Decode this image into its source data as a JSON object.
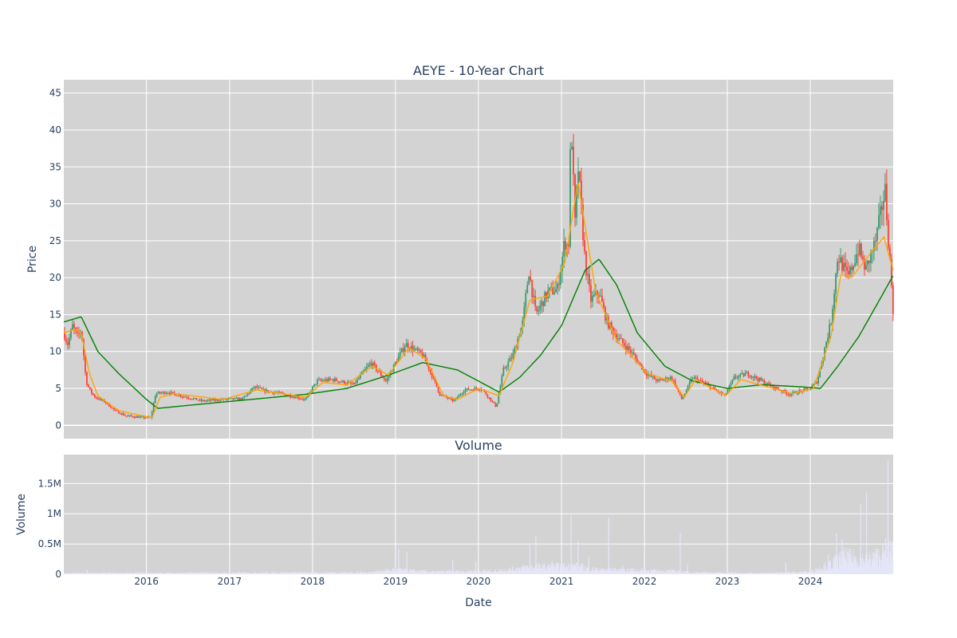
{
  "chart_data": [
    {
      "type": "candlestick",
      "title": "AEYE - 10-Year Chart",
      "ylabel": "Price",
      "ylim": [
        -1.8,
        46.8
      ],
      "yticks": [
        0,
        5,
        10,
        15,
        20,
        25,
        30,
        35,
        40,
        45
      ],
      "xlim": [
        "2015-01-02",
        "2024-12-31"
      ],
      "xticks": [
        "2016-01-01",
        "2017-01-01",
        "2018-01-01",
        "2019-01-01",
        "2020-01-01",
        "2021-01-01",
        "2022-01-01",
        "2023-01-01",
        "2024-01-01"
      ],
      "xtick_labels": [
        "2016",
        "2017",
        "2018",
        "2019",
        "2020",
        "2021",
        "2022",
        "2023",
        "2024"
      ],
      "grid": true,
      "colors": {
        "up": "#3d9970",
        "down": "#ff4136",
        "ma_short": "#ffa500",
        "ma_long": "#008000",
        "plot_bg": "#d3d3d3"
      },
      "price_anchors": [
        [
          "2015-01-02",
          12.5
        ],
        [
          "2015-01-20",
          11.0
        ],
        [
          "2015-02-10",
          13.5
        ],
        [
          "2015-03-01",
          12.0
        ],
        [
          "2015-03-20",
          13.0
        ],
        [
          "2015-04-10",
          6.0
        ],
        [
          "2015-04-25",
          4.8
        ],
        [
          "2015-05-20",
          3.8
        ],
        [
          "2015-07-01",
          3.2
        ],
        [
          "2015-08-15",
          2.0
        ],
        [
          "2015-10-01",
          1.3
        ],
        [
          "2015-12-01",
          1.1
        ],
        [
          "2016-01-20",
          1.0
        ],
        [
          "2016-02-10",
          4.3
        ],
        [
          "2016-04-01",
          4.5
        ],
        [
          "2016-06-01",
          4.0
        ],
        [
          "2016-09-01",
          3.3
        ],
        [
          "2016-12-01",
          3.5
        ],
        [
          "2017-03-01",
          3.6
        ],
        [
          "2017-04-20",
          5.2
        ],
        [
          "2017-06-01",
          4.7
        ],
        [
          "2017-09-01",
          4.2
        ],
        [
          "2017-12-01",
          3.5
        ],
        [
          "2018-01-20",
          6.0
        ],
        [
          "2018-04-01",
          6.2
        ],
        [
          "2018-07-01",
          5.5
        ],
        [
          "2018-09-15",
          8.5
        ],
        [
          "2018-11-20",
          6.0
        ],
        [
          "2019-01-10",
          9.0
        ],
        [
          "2019-02-15",
          11.0
        ],
        [
          "2019-05-01",
          9.5
        ],
        [
          "2019-06-01",
          7.5
        ],
        [
          "2019-07-15",
          4.2
        ],
        [
          "2019-09-15",
          3.3
        ],
        [
          "2019-11-01",
          4.8
        ],
        [
          "2020-01-15",
          5.0
        ],
        [
          "2020-03-20",
          2.5
        ],
        [
          "2020-04-20",
          7.5
        ],
        [
          "2020-06-01",
          9.5
        ],
        [
          "2020-07-15",
          14.0
        ],
        [
          "2020-08-10",
          21.0
        ],
        [
          "2020-09-10",
          15.0
        ],
        [
          "2020-11-01",
          18.0
        ],
        [
          "2020-12-15",
          18.5
        ],
        [
          "2021-01-15",
          25.0
        ],
        [
          "2021-02-01",
          24.0
        ],
        [
          "2021-02-12",
          42.0
        ],
        [
          "2021-03-01",
          27.0
        ],
        [
          "2021-03-15",
          35.0
        ],
        [
          "2021-04-15",
          22.0
        ],
        [
          "2021-05-10",
          17.0
        ],
        [
          "2021-06-15",
          18.0
        ],
        [
          "2021-07-20",
          14.0
        ],
        [
          "2021-09-01",
          12.0
        ],
        [
          "2021-11-01",
          10.0
        ],
        [
          "2022-01-10",
          7.0
        ],
        [
          "2022-03-01",
          6.0
        ],
        [
          "2022-05-01",
          6.5
        ],
        [
          "2022-06-15",
          3.5
        ],
        [
          "2022-08-01",
          6.5
        ],
        [
          "2022-10-01",
          5.5
        ],
        [
          "2022-12-20",
          4.0
        ],
        [
          "2023-02-01",
          6.5
        ],
        [
          "2023-04-01",
          7.0
        ],
        [
          "2023-07-01",
          5.5
        ],
        [
          "2023-10-01",
          4.2
        ],
        [
          "2024-01-01",
          5.0
        ],
        [
          "2024-02-01",
          6.0
        ],
        [
          "2024-03-01",
          10.0
        ],
        [
          "2024-04-01",
          14.0
        ],
        [
          "2024-05-01",
          23.0
        ],
        [
          "2024-06-15",
          20.0
        ],
        [
          "2024-08-01",
          24.0
        ],
        [
          "2024-09-01",
          21.0
        ],
        [
          "2024-10-15",
          25.0
        ],
        [
          "2024-11-25",
          32.0
        ],
        [
          "2024-12-10",
          25.0
        ],
        [
          "2024-12-31",
          15.5
        ]
      ],
      "short_ma_anchors": [
        [
          "2015-01-02",
          12.5
        ],
        [
          "2015-02-20",
          13.0
        ],
        [
          "2015-03-20",
          12.5
        ],
        [
          "2015-04-25",
          7.0
        ],
        [
          "2015-06-01",
          4.0
        ],
        [
          "2015-09-01",
          2.0
        ],
        [
          "2016-01-25",
          1.0
        ],
        [
          "2016-03-01",
          3.8
        ],
        [
          "2016-05-01",
          4.3
        ],
        [
          "2016-12-01",
          3.5
        ],
        [
          "2017-05-01",
          4.8
        ],
        [
          "2017-12-01",
          3.8
        ],
        [
          "2018-02-15",
          5.8
        ],
        [
          "2018-06-01",
          5.5
        ],
        [
          "2018-09-20",
          8.0
        ],
        [
          "2018-12-01",
          6.8
        ],
        [
          "2019-03-01",
          10.5
        ],
        [
          "2019-05-15",
          9.0
        ],
        [
          "2019-08-01",
          4.0
        ],
        [
          "2019-10-01",
          3.5
        ],
        [
          "2020-01-01",
          5.0
        ],
        [
          "2020-04-01",
          4.0
        ],
        [
          "2020-06-01",
          8.5
        ],
        [
          "2020-08-15",
          17.0
        ],
        [
          "2020-11-01",
          17.5
        ],
        [
          "2021-01-15",
          22.0
        ],
        [
          "2021-03-15",
          33.0
        ],
        [
          "2021-04-20",
          26.0
        ],
        [
          "2021-06-01",
          18.0
        ],
        [
          "2021-09-01",
          11.5
        ],
        [
          "2022-01-15",
          7.0
        ],
        [
          "2022-05-01",
          6.0
        ],
        [
          "2022-06-25",
          3.8
        ],
        [
          "2022-08-15",
          6.2
        ],
        [
          "2022-12-25",
          4.0
        ],
        [
          "2023-03-01",
          6.2
        ],
        [
          "2023-10-15",
          4.3
        ],
        [
          "2024-01-15",
          5.0
        ],
        [
          "2024-04-01",
          12.0
        ],
        [
          "2024-05-15",
          20.5
        ],
        [
          "2024-07-01",
          20.0
        ],
        [
          "2024-09-01",
          22.5
        ],
        [
          "2024-11-20",
          25.5
        ],
        [
          "2024-12-31",
          21.0
        ]
      ],
      "long_ma_anchors": [
        [
          "2015-01-02",
          14.0
        ],
        [
          "2015-03-20",
          14.7
        ],
        [
          "2015-06-01",
          10.0
        ],
        [
          "2015-09-01",
          7.0
        ],
        [
          "2016-01-01",
          3.5
        ],
        [
          "2016-02-20",
          2.3
        ],
        [
          "2016-07-01",
          2.7
        ],
        [
          "2017-04-01",
          3.5
        ],
        [
          "2017-12-01",
          4.2
        ],
        [
          "2018-06-01",
          5.0
        ],
        [
          "2018-12-01",
          6.8
        ],
        [
          "2019-05-01",
          8.5
        ],
        [
          "2019-10-01",
          7.5
        ],
        [
          "2020-01-01",
          6.0
        ],
        [
          "2020-04-01",
          4.5
        ],
        [
          "2020-07-01",
          6.5
        ],
        [
          "2020-10-01",
          9.5
        ],
        [
          "2021-01-01",
          13.5
        ],
        [
          "2021-04-15",
          21.0
        ],
        [
          "2021-06-15",
          22.5
        ],
        [
          "2021-09-01",
          19.0
        ],
        [
          "2021-12-01",
          12.5
        ],
        [
          "2022-04-01",
          8.0
        ],
        [
          "2022-08-01",
          6.0
        ],
        [
          "2023-01-01",
          5.0
        ],
        [
          "2023-06-01",
          5.5
        ],
        [
          "2023-12-01",
          5.2
        ],
        [
          "2024-02-15",
          5.0
        ],
        [
          "2024-05-01",
          8.0
        ],
        [
          "2024-08-01",
          12.0
        ],
        [
          "2024-11-01",
          17.0
        ],
        [
          "2024-12-31",
          20.3
        ]
      ]
    },
    {
      "type": "bar",
      "title": "Volume",
      "xlabel": "Date",
      "ylabel": "Volume",
      "ylim": [
        0,
        1.98
      ],
      "yticks": [
        0,
        0.5,
        1,
        1.5
      ],
      "ytick_labels": [
        "0",
        "0.5M",
        "1M",
        "1.5M"
      ],
      "unit": "millions of shares",
      "colors": {
        "bar": "#e6e6fa",
        "plot_bg": "#d3d3d3"
      },
      "base_volume_anchors": [
        [
          "2015-01-02",
          0.02
        ],
        [
          "2018-09-01",
          0.03
        ],
        [
          "2019-01-01",
          0.08
        ],
        [
          "2019-06-01",
          0.04
        ],
        [
          "2020-04-01",
          0.06
        ],
        [
          "2020-08-01",
          0.12
        ],
        [
          "2021-03-01",
          0.14
        ],
        [
          "2021-06-01",
          0.08
        ],
        [
          "2021-12-01",
          0.07
        ],
        [
          "2022-06-01",
          0.05
        ],
        [
          "2022-08-01",
          0.03
        ],
        [
          "2023-06-01",
          0.02
        ],
        [
          "2024-01-01",
          0.04
        ],
        [
          "2024-03-15",
          0.15
        ],
        [
          "2024-06-01",
          0.3
        ],
        [
          "2024-09-01",
          0.25
        ],
        [
          "2024-12-31",
          0.4
        ]
      ],
      "volume_spikes": [
        [
          "2015-04-15",
          0.07
        ],
        [
          "2019-01-15",
          0.42
        ],
        [
          "2019-02-20",
          0.36
        ],
        [
          "2019-09-10",
          0.24
        ],
        [
          "2019-12-20",
          0.21
        ],
        [
          "2020-08-15",
          0.51
        ],
        [
          "2020-09-10",
          0.64
        ],
        [
          "2020-11-20",
          0.22
        ],
        [
          "2021-02-12",
          0.97
        ],
        [
          "2021-03-15",
          0.55
        ],
        [
          "2021-05-01",
          0.29
        ],
        [
          "2021-07-28",
          0.93
        ],
        [
          "2021-10-01",
          0.14
        ],
        [
          "2022-06-08",
          0.68
        ],
        [
          "2022-07-10",
          0.16
        ],
        [
          "2023-09-15",
          0.19
        ],
        [
          "2024-03-20",
          0.33
        ],
        [
          "2024-04-25",
          0.68
        ],
        [
          "2024-05-20",
          0.58
        ],
        [
          "2024-08-10",
          1.15
        ],
        [
          "2024-09-05",
          1.35
        ],
        [
          "2024-10-20",
          0.33
        ],
        [
          "2024-11-28",
          0.6
        ],
        [
          "2024-12-08",
          1.88
        ],
        [
          "2024-12-20",
          0.55
        ]
      ]
    }
  ]
}
